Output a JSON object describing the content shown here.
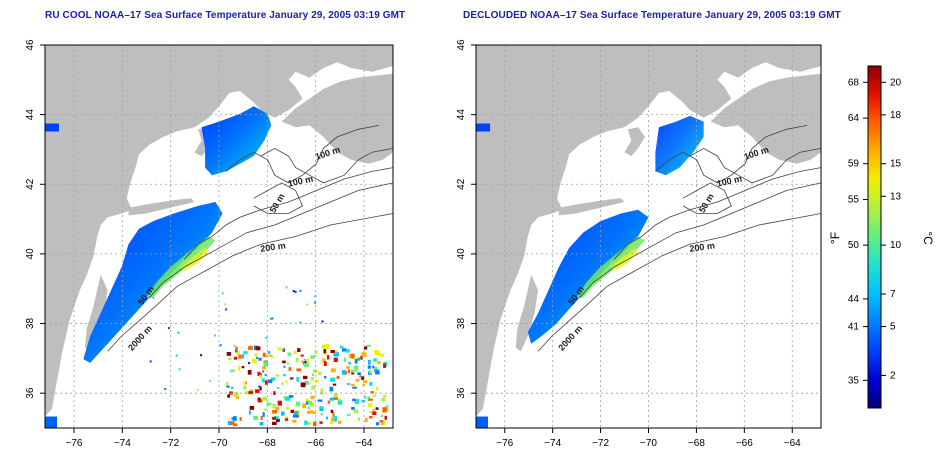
{
  "panels": [
    {
      "title": "RU COOL NOAA–17 Sea Surface Temperature January 29, 2005 03:19 GMT",
      "variant": "raw",
      "contour_labels": [
        "100 m",
        "100 m",
        "50 m",
        "200 m",
        "50 m",
        "2000 m"
      ]
    },
    {
      "title": "DECLOUDED NOAA–17 Sea Surface Temperature January 29, 2005 03:19 GMT",
      "variant": "declouded",
      "contour_labels": [
        "100 m",
        "100 m",
        "50 m",
        "200 m",
        "50 m",
        "2000 m"
      ]
    }
  ],
  "axes": {
    "lon_ticks": [
      "−76",
      "−74",
      "−72",
      "−70",
      "−68",
      "−66",
      "−64"
    ],
    "lon_values": [
      -76,
      -74,
      -72,
      -70,
      -68,
      -66,
      -64
    ],
    "lon_range": [
      -77.2,
      -62.8
    ],
    "lat_ticks": [
      "36",
      "38",
      "40",
      "42",
      "44",
      "46"
    ],
    "lat_values": [
      36,
      38,
      40,
      42,
      44,
      46
    ],
    "lat_range": [
      35,
      46
    ]
  },
  "colorbar": {
    "f_label": "°F",
    "c_label": "°C",
    "f_ticks": [
      {
        "label": "68",
        "c": 20
      },
      {
        "label": "64",
        "c": 17.8
      },
      {
        "label": "59",
        "c": 15
      },
      {
        "label": "55",
        "c": 12.8
      },
      {
        "label": "50",
        "c": 10
      },
      {
        "label": "44",
        "c": 6.7
      },
      {
        "label": "41",
        "c": 5
      },
      {
        "label": "35",
        "c": 1.7
      }
    ],
    "c_ticks": [
      {
        "label": "20",
        "c": 20
      },
      {
        "label": "18",
        "c": 18
      },
      {
        "label": "15",
        "c": 15
      },
      {
        "label": "13",
        "c": 13
      },
      {
        "label": "10",
        "c": 10
      },
      {
        "label": "7",
        "c": 7
      },
      {
        "label": "5",
        "c": 5
      },
      {
        "label": "2",
        "c": 2
      }
    ],
    "range_c": [
      0,
      21
    ],
    "colors": [
      "#000080",
      "#0000d0",
      "#0040ff",
      "#0080ff",
      "#00c0ff",
      "#20e0d0",
      "#60f080",
      "#b0f040",
      "#f0f000",
      "#ffb000",
      "#ff6000",
      "#e01000",
      "#900000"
    ]
  },
  "colors": {
    "land": "#bebebe",
    "ocean": "#ffffff",
    "title": "#1a22a8",
    "contour": "#404040"
  }
}
